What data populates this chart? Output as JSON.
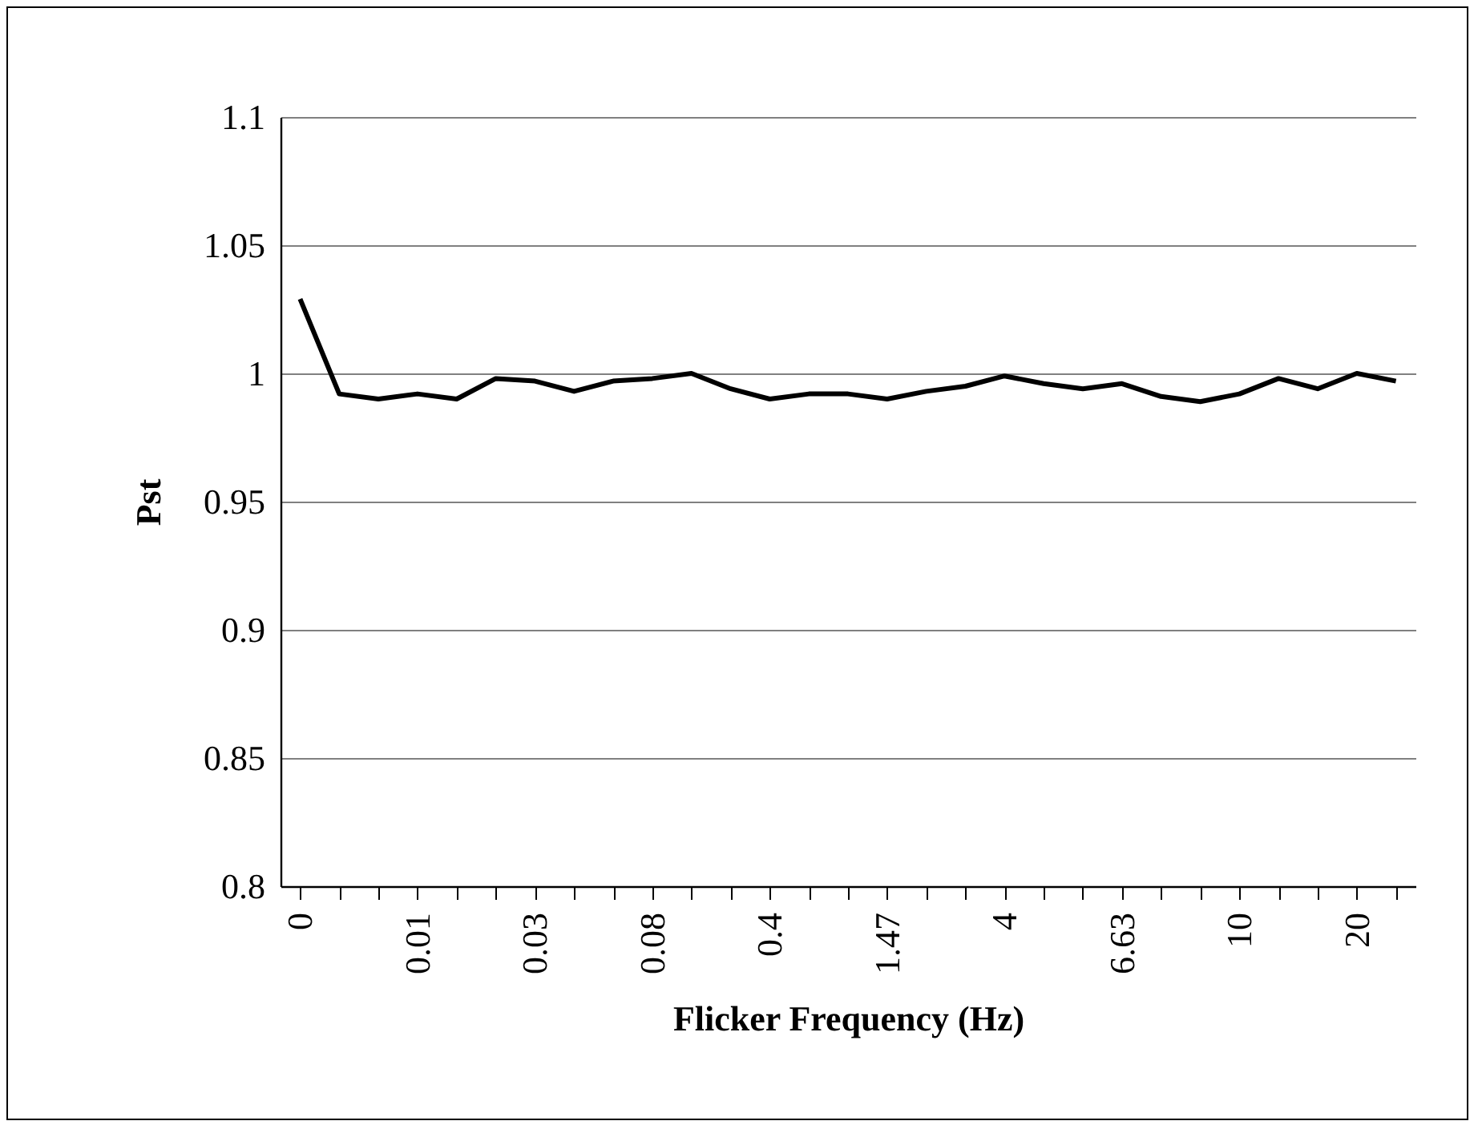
{
  "chart_data": {
    "type": "line",
    "xlabel": "Flicker Frequency (Hz)",
    "ylabel": "Pst",
    "categories": [
      "0",
      null,
      null,
      "0.01",
      null,
      null,
      "0.03",
      null,
      null,
      "0.08",
      null,
      null,
      "0.4",
      null,
      null,
      "1.47",
      null,
      null,
      "4",
      null,
      null,
      "6.63",
      null,
      null,
      "10",
      null,
      null,
      "20",
      null
    ],
    "series": [
      {
        "color": "#000000",
        "values": [
          1.029,
          0.992,
          0.99,
          0.992,
          0.99,
          0.998,
          0.997,
          0.993,
          0.997,
          0.998,
          1.0,
          0.994,
          0.99,
          0.992,
          0.992,
          0.99,
          0.993,
          0.995,
          0.999,
          0.996,
          0.994,
          0.996,
          0.991,
          0.989,
          0.992,
          0.998,
          0.994,
          1.0,
          0.997
        ]
      }
    ],
    "ylim": [
      0.8,
      1.1
    ],
    "yticks": [
      0.8,
      0.85,
      0.9,
      0.95,
      1,
      1.05,
      1.1
    ],
    "grid": "y"
  }
}
